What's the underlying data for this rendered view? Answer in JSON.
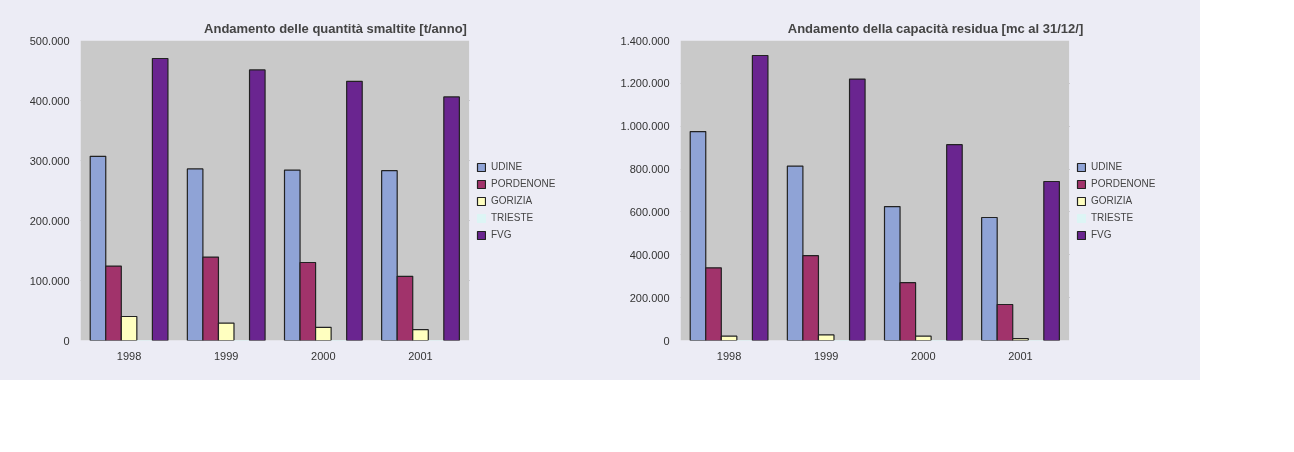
{
  "chart_data": [
    {
      "type": "bar",
      "title": "Andamento delle quantità smaltite [t/anno]",
      "categories": [
        "1998",
        "1999",
        "2000",
        "2001"
      ],
      "series": [
        {
          "name": "UDINE",
          "color": "#8fa3d6",
          "values": [
            307000,
            286000,
            284000,
            283000
          ]
        },
        {
          "name": "PORDENONE",
          "color": "#a1336b",
          "values": [
            124000,
            139000,
            130000,
            107000
          ]
        },
        {
          "name": "GORIZIA",
          "color": "#ffffc0",
          "values": [
            40000,
            29000,
            22000,
            18000
          ]
        },
        {
          "name": "TRIESTE",
          "color": "#ddf5f5",
          "values": [
            0,
            0,
            0,
            0
          ]
        },
        {
          "name": "FVG",
          "color": "#6a2590",
          "values": [
            470000,
            451000,
            432000,
            406000
          ]
        }
      ],
      "ylim": [
        0,
        500000
      ],
      "yticks": [
        {
          "value": 0,
          "label": "0"
        },
        {
          "value": 100000,
          "label": "100.000"
        },
        {
          "value": 200000,
          "label": "200.000"
        },
        {
          "value": 300000,
          "label": "300.000"
        },
        {
          "value": 400000,
          "label": "400.000"
        },
        {
          "value": 500000,
          "label": "500.000"
        }
      ],
      "grid": "y",
      "legend": "right"
    },
    {
      "type": "bar",
      "title": "Andamento della capacità residua [mc al 31/12/]",
      "categories": [
        "1998",
        "1999",
        "2000",
        "2001"
      ],
      "series": [
        {
          "name": "UDINE",
          "color": "#8fa3d6",
          "values": [
            975000,
            814000,
            625000,
            574000
          ]
        },
        {
          "name": "PORDENONE",
          "color": "#a1336b",
          "values": [
            339000,
            396000,
            270000,
            168000
          ]
        },
        {
          "name": "GORIZIA",
          "color": "#ffffc0",
          "values": [
            20000,
            26000,
            20000,
            9000
          ]
        },
        {
          "name": "TRIESTE",
          "color": "#ddf5f5",
          "values": [
            0,
            0,
            0,
            0
          ]
        },
        {
          "name": "FVG",
          "color": "#6a2590",
          "values": [
            1330000,
            1220000,
            914000,
            742000
          ]
        }
      ],
      "ylim": [
        0,
        1400000
      ],
      "yticks": [
        {
          "value": 0,
          "label": "0"
        },
        {
          "value": 200000,
          "label": "200.000"
        },
        {
          "value": 400000,
          "label": "400.000"
        },
        {
          "value": 600000,
          "label": "600.000"
        },
        {
          "value": 800000,
          "label": "800.000"
        },
        {
          "value": 1000000,
          "label": "1.000.000"
        },
        {
          "value": 1200000,
          "label": "1.200.000"
        },
        {
          "value": 1400000,
          "label": "1.400.000"
        }
      ],
      "grid": "y",
      "legend": "right"
    }
  ]
}
